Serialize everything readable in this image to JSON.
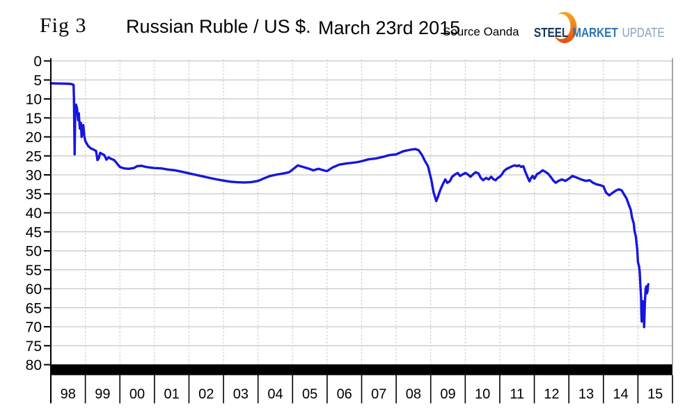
{
  "header": {
    "fig_label": "Fig 3",
    "title": "Russian Ruble / US $.",
    "date": "March 23rd 2015",
    "source": "Source Oanda",
    "logo": {
      "steel": "STEEL",
      "market": "MARKET",
      "update": "UPDATE",
      "steel_color": "#17365d",
      "market_color": "#2e74b5",
      "update_color": "#8aa0bd",
      "crescent_colors": [
        "#f7a823",
        "#e84e0f"
      ]
    }
  },
  "chart_data": {
    "type": "line",
    "title": "Russian Ruble / US $",
    "date_label": "March 23rd 2015",
    "source": "Oanda",
    "x_axis": {
      "start_year": 1998,
      "num_years": 18,
      "year_labels": [
        "98",
        "99",
        "00",
        "01",
        "02",
        "03",
        "04",
        "05",
        "06",
        "07",
        "08",
        "09",
        "10",
        "11",
        "12",
        "13",
        "14",
        "15"
      ]
    },
    "y_axis": {
      "min": 0,
      "max": 80,
      "step": 5,
      "inverted": true,
      "ticks": [
        0,
        5,
        10,
        15,
        20,
        25,
        30,
        35,
        40,
        45,
        50,
        55,
        60,
        65,
        70,
        75,
        80
      ]
    },
    "grid": {
      "horizontal": "solid",
      "vertical": "dotted",
      "color": "#c6c6c6",
      "bottom_bar_value": 80
    },
    "line_color": "#1616dd",
    "series": [
      {
        "name": "RUB per USD",
        "points": [
          [
            1998.0,
            5.9
          ],
          [
            1998.25,
            5.95
          ],
          [
            1998.5,
            6.0
          ],
          [
            1998.6,
            6.1
          ],
          [
            1998.66,
            6.3
          ],
          [
            1998.67,
            9.5
          ],
          [
            1998.685,
            21.0
          ],
          [
            1998.69,
            24.6
          ],
          [
            1998.705,
            14.0
          ],
          [
            1998.73,
            11.5
          ],
          [
            1998.76,
            12.5
          ],
          [
            1998.79,
            15.6
          ],
          [
            1998.81,
            13.8
          ],
          [
            1998.84,
            17.8
          ],
          [
            1998.87,
            16.3
          ],
          [
            1998.89,
            20.0
          ],
          [
            1998.92,
            18.0
          ],
          [
            1998.94,
            16.9
          ],
          [
            1998.97,
            19.8
          ],
          [
            1999.0,
            21.1
          ],
          [
            1999.08,
            22.4
          ],
          [
            1999.16,
            23.0
          ],
          [
            1999.25,
            23.4
          ],
          [
            1999.31,
            23.7
          ],
          [
            1999.35,
            26.1
          ],
          [
            1999.39,
            25.6
          ],
          [
            1999.43,
            24.2
          ],
          [
            1999.51,
            24.6
          ],
          [
            1999.55,
            24.8
          ],
          [
            1999.61,
            26.0
          ],
          [
            1999.67,
            25.4
          ],
          [
            1999.75,
            25.8
          ],
          [
            1999.83,
            26.1
          ],
          [
            1999.9,
            26.8
          ],
          [
            1999.96,
            27.5
          ],
          [
            2000.0,
            27.9
          ],
          [
            2000.12,
            28.3
          ],
          [
            2000.25,
            28.4
          ],
          [
            2000.4,
            28.2
          ],
          [
            2000.5,
            27.7
          ],
          [
            2000.62,
            27.6
          ],
          [
            2000.75,
            27.9
          ],
          [
            2000.88,
            28.1
          ],
          [
            2001.0,
            28.2
          ],
          [
            2001.2,
            28.3
          ],
          [
            2001.4,
            28.6
          ],
          [
            2001.6,
            28.8
          ],
          [
            2001.8,
            29.2
          ],
          [
            2002.0,
            29.6
          ],
          [
            2002.2,
            30.0
          ],
          [
            2002.4,
            30.4
          ],
          [
            2002.6,
            30.8
          ],
          [
            2002.8,
            31.2
          ],
          [
            2003.0,
            31.5
          ],
          [
            2003.2,
            31.8
          ],
          [
            2003.4,
            31.95
          ],
          [
            2003.6,
            32.0
          ],
          [
            2003.8,
            31.9
          ],
          [
            2004.0,
            31.6
          ],
          [
            2004.15,
            31.0
          ],
          [
            2004.35,
            30.3
          ],
          [
            2004.55,
            29.9
          ],
          [
            2004.75,
            29.6
          ],
          [
            2004.9,
            29.3
          ],
          [
            2005.0,
            28.6
          ],
          [
            2005.15,
            27.5
          ],
          [
            2005.3,
            27.9
          ],
          [
            2005.45,
            28.3
          ],
          [
            2005.6,
            28.8
          ],
          [
            2005.75,
            28.4
          ],
          [
            2005.9,
            28.8
          ],
          [
            2006.0,
            29.0
          ],
          [
            2006.15,
            28.1
          ],
          [
            2006.35,
            27.3
          ],
          [
            2006.55,
            27.0
          ],
          [
            2006.75,
            26.8
          ],
          [
            2006.9,
            26.6
          ],
          [
            2007.0,
            26.4
          ],
          [
            2007.2,
            25.9
          ],
          [
            2007.4,
            25.7
          ],
          [
            2007.6,
            25.3
          ],
          [
            2007.8,
            24.8
          ],
          [
            2008.0,
            24.6
          ],
          [
            2008.2,
            23.8
          ],
          [
            2008.4,
            23.4
          ],
          [
            2008.55,
            23.2
          ],
          [
            2008.65,
            23.5
          ],
          [
            2008.75,
            24.8
          ],
          [
            2008.83,
            26.3
          ],
          [
            2008.92,
            27.7
          ],
          [
            2009.02,
            31.4
          ],
          [
            2009.08,
            34.5
          ],
          [
            2009.16,
            36.9
          ],
          [
            2009.22,
            35.5
          ],
          [
            2009.28,
            33.9
          ],
          [
            2009.36,
            32.3
          ],
          [
            2009.42,
            31.2
          ],
          [
            2009.48,
            32.1
          ],
          [
            2009.55,
            31.7
          ],
          [
            2009.62,
            30.5
          ],
          [
            2009.7,
            29.9
          ],
          [
            2009.78,
            29.5
          ],
          [
            2009.85,
            30.3
          ],
          [
            2009.92,
            29.9
          ],
          [
            2010.0,
            29.5
          ],
          [
            2010.08,
            29.9
          ],
          [
            2010.15,
            30.5
          ],
          [
            2010.22,
            29.9
          ],
          [
            2010.3,
            29.3
          ],
          [
            2010.38,
            29.6
          ],
          [
            2010.45,
            30.8
          ],
          [
            2010.52,
            31.4
          ],
          [
            2010.6,
            30.8
          ],
          [
            2010.68,
            31.2
          ],
          [
            2010.75,
            30.5
          ],
          [
            2010.82,
            31.2
          ],
          [
            2010.88,
            31.4
          ],
          [
            2010.94,
            30.8
          ],
          [
            2011.0,
            30.5
          ],
          [
            2011.06,
            29.9
          ],
          [
            2011.12,
            29.0
          ],
          [
            2011.2,
            28.4
          ],
          [
            2011.28,
            28.1
          ],
          [
            2011.36,
            27.7
          ],
          [
            2011.44,
            27.5
          ],
          [
            2011.5,
            27.7
          ],
          [
            2011.56,
            27.5
          ],
          [
            2011.62,
            27.9
          ],
          [
            2011.68,
            27.7
          ],
          [
            2011.74,
            29.2
          ],
          [
            2011.8,
            30.5
          ],
          [
            2011.86,
            31.7
          ],
          [
            2011.9,
            30.9
          ],
          [
            2011.95,
            30.3
          ],
          [
            2012.0,
            31.0
          ],
          [
            2012.08,
            29.8
          ],
          [
            2012.16,
            29.4
          ],
          [
            2012.24,
            28.8
          ],
          [
            2012.32,
            29.2
          ],
          [
            2012.4,
            29.7
          ],
          [
            2012.48,
            30.6
          ],
          [
            2012.56,
            31.6
          ],
          [
            2012.62,
            32.1
          ],
          [
            2012.7,
            31.6
          ],
          [
            2012.8,
            31.2
          ],
          [
            2012.9,
            31.6
          ],
          [
            2013.0,
            31.0
          ],
          [
            2013.1,
            30.3
          ],
          [
            2013.2,
            30.6
          ],
          [
            2013.35,
            31.2
          ],
          [
            2013.5,
            31.6
          ],
          [
            2013.6,
            31.4
          ],
          [
            2013.7,
            32.1
          ],
          [
            2013.8,
            32.5
          ],
          [
            2013.9,
            32.7
          ],
          [
            2014.0,
            33.0
          ],
          [
            2014.08,
            34.7
          ],
          [
            2014.17,
            35.4
          ],
          [
            2014.27,
            34.7
          ],
          [
            2014.37,
            34.1
          ],
          [
            2014.45,
            33.8
          ],
          [
            2014.53,
            34.1
          ],
          [
            2014.59,
            35.0
          ],
          [
            2014.67,
            36.2
          ],
          [
            2014.73,
            37.7
          ],
          [
            2014.79,
            39.2
          ],
          [
            2014.83,
            41.3
          ],
          [
            2014.88,
            42.8
          ],
          [
            2014.9,
            44.7
          ],
          [
            2014.92,
            45.5
          ],
          [
            2014.94,
            46.2
          ],
          [
            2014.96,
            48.0
          ],
          [
            2014.98,
            49.6
          ],
          [
            2015.0,
            53.0
          ],
          [
            2015.03,
            54.0
          ],
          [
            2015.05,
            55.4
          ],
          [
            2015.07,
            59.1
          ],
          [
            2015.09,
            62.2
          ],
          [
            2015.1,
            66.4
          ],
          [
            2015.11,
            68.6
          ],
          [
            2015.12,
            65.1
          ],
          [
            2015.14,
            63.3
          ],
          [
            2015.16,
            65.9
          ],
          [
            2015.18,
            70.1
          ],
          [
            2015.2,
            64.0
          ],
          [
            2015.21,
            62.2
          ],
          [
            2015.22,
            60.3
          ],
          [
            2015.24,
            59.4
          ],
          [
            2015.26,
            61.2
          ],
          [
            2015.28,
            60.5
          ],
          [
            2015.29,
            59.1
          ],
          [
            2015.3,
            58.8
          ]
        ]
      }
    ]
  }
}
